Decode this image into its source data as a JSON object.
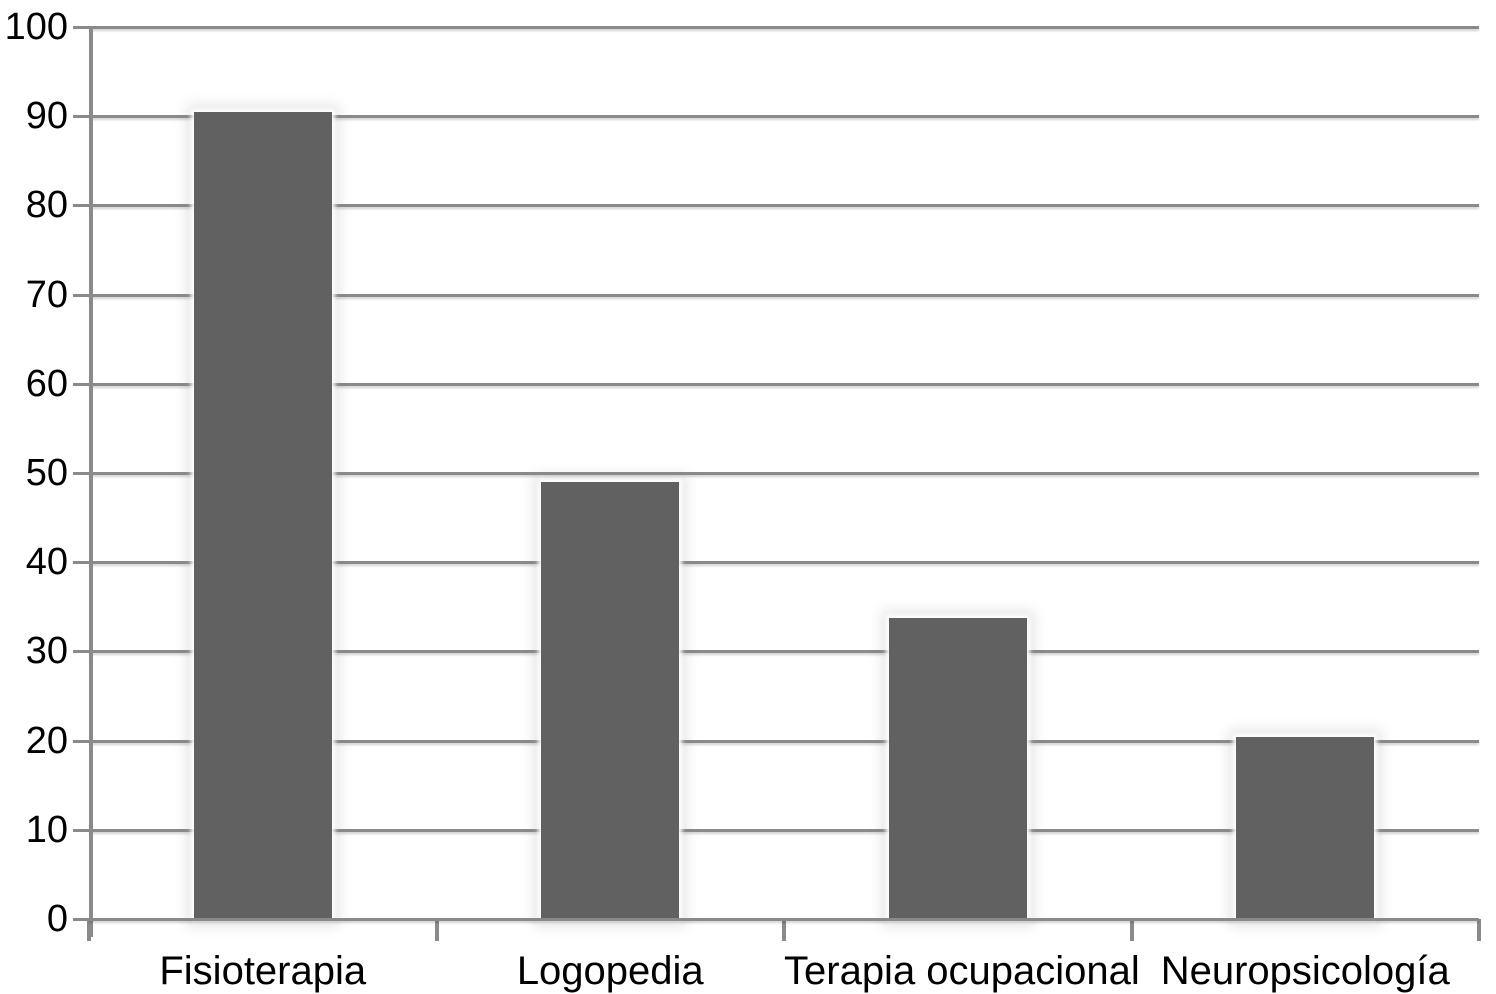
{
  "chart_data": {
    "type": "bar",
    "title": "",
    "xlabel": "",
    "ylabel": "",
    "categories": [
      "Fisioterapia",
      "Logopedia",
      "Terapia ocupacional",
      "Neuropsicología"
    ],
    "values": [
      90.5,
      49,
      33.8,
      20.4
    ],
    "ylim": [
      0,
      100
    ],
    "y_ticks": [
      0,
      10,
      20,
      30,
      40,
      50,
      60,
      70,
      80,
      90,
      100
    ],
    "grid": "horizontal",
    "legend": "none",
    "colors": {
      "bar": "#616161",
      "gridline": "#8a8a8a",
      "axis": "#8a8a8a",
      "text": "#000000",
      "background": "#ffffff"
    }
  }
}
